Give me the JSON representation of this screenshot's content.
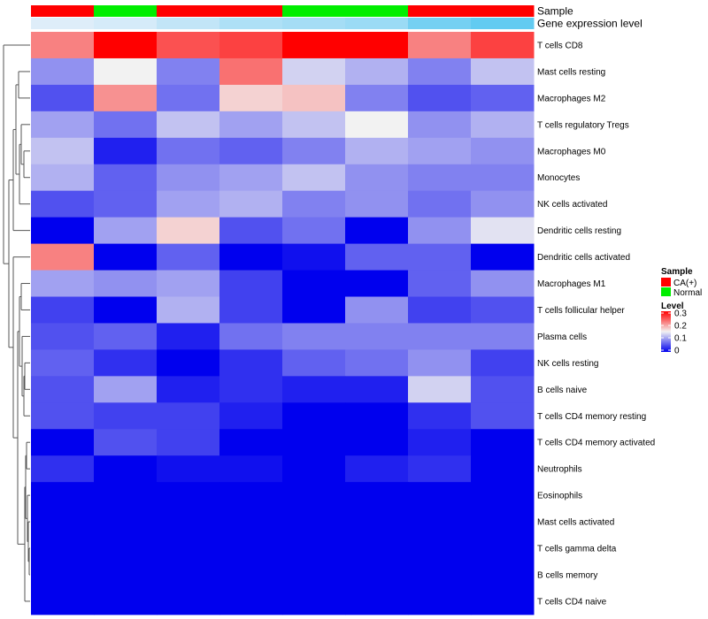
{
  "chart_data": {
    "type": "heatmap",
    "annotation_rows": [
      {
        "label": "Sample",
        "values": [
          "CA(+)",
          "Normal",
          "CA(+)",
          "CA(+)",
          "Normal",
          "Normal",
          "CA(+)",
          "CA(+)"
        ]
      },
      {
        "label": "Gene expression level",
        "values": [
          0.01,
          0.02,
          0.04,
          0.06,
          0.07,
          0.08,
          0.12,
          0.14
        ]
      }
    ],
    "rows": [
      "T cells CD8",
      "Mast cells resting",
      "Macrophages M2",
      "T cells regulatory  Tregs",
      "Macrophages M0",
      "Monocytes",
      "NK cells activated",
      "Dendritic cells resting",
      "Dendritic cells activated",
      "Macrophages M1",
      "T cells follicular helper",
      "Plasma cells",
      "NK cells resting",
      "B cells naive",
      "T cells CD4 memory resting",
      "T cells CD4 memory activated",
      "Neutrophils",
      "Eosinophils",
      "Mast cells activated",
      "T cells gamma delta",
      "B cells memory",
      "T cells CD4 naive"
    ],
    "values": [
      [
        0.22,
        0.3,
        0.25,
        0.26,
        0.3,
        0.3,
        0.22,
        0.26
      ],
      [
        0.09,
        0.15,
        0.08,
        0.23,
        0.13,
        0.11,
        0.08,
        0.12
      ],
      [
        0.05,
        0.21,
        0.07,
        0.17,
        0.18,
        0.08,
        0.05,
        0.06
      ],
      [
        0.1,
        0.07,
        0.12,
        0.1,
        0.12,
        0.15,
        0.09,
        0.11
      ],
      [
        0.12,
        0.02,
        0.07,
        0.06,
        0.08,
        0.11,
        0.1,
        0.09
      ],
      [
        0.11,
        0.06,
        0.09,
        0.1,
        0.12,
        0.09,
        0.08,
        0.08
      ],
      [
        0.05,
        0.06,
        0.1,
        0.11,
        0.08,
        0.09,
        0.07,
        0.09
      ],
      [
        0.0,
        0.1,
        0.17,
        0.05,
        0.07,
        0.0,
        0.09,
        0.14
      ],
      [
        0.22,
        0.0,
        0.06,
        0.0,
        0.01,
        0.06,
        0.06,
        0.0
      ],
      [
        0.1,
        0.09,
        0.1,
        0.04,
        0.0,
        0.0,
        0.06,
        0.09
      ],
      [
        0.04,
        0.0,
        0.11,
        0.04,
        0.0,
        0.09,
        0.04,
        0.05
      ],
      [
        0.05,
        0.06,
        0.02,
        0.07,
        0.08,
        0.08,
        0.08,
        0.08
      ],
      [
        0.06,
        0.03,
        0.0,
        0.03,
        0.06,
        0.07,
        0.09,
        0.04
      ],
      [
        0.05,
        0.1,
        0.02,
        0.03,
        0.02,
        0.02,
        0.13,
        0.05
      ],
      [
        0.05,
        0.04,
        0.04,
        0.02,
        0.0,
        0.0,
        0.03,
        0.05
      ],
      [
        0.0,
        0.05,
        0.04,
        0.0,
        0.0,
        0.0,
        0.02,
        0.0
      ],
      [
        0.03,
        0.0,
        0.01,
        0.01,
        0.0,
        0.02,
        0.03,
        0.0
      ],
      [
        0.0,
        0.0,
        0.0,
        0.0,
        0.0,
        0.0,
        0.0,
        0.0
      ],
      [
        0.0,
        0.0,
        0.0,
        0.0,
        0.0,
        0.0,
        0.0,
        0.0
      ],
      [
        0.0,
        0.0,
        0.0,
        0.0,
        0.0,
        0.0,
        0.0,
        0.0
      ],
      [
        0.0,
        0.0,
        0.0,
        0.0,
        0.0,
        0.0,
        0.0,
        0.0
      ],
      [
        0.0,
        0.0,
        0.0,
        0.0,
        0.0,
        0.0,
        0.0,
        0.0
      ]
    ],
    "color_scale": {
      "low": "#0000ee",
      "mid": "#f2f2f2",
      "high": "#ff0000",
      "min": 0,
      "mid_value": 0.15,
      "max": 0.3
    },
    "row_dendrogram": true,
    "legend": {
      "sample": {
        "title": "Sample",
        "items": [
          {
            "label": "CA(+)",
            "color": "#ff0000"
          },
          {
            "label": "Normal",
            "color": "#00ee00"
          }
        ]
      },
      "level": {
        "title": "Level",
        "ticks": [
          "0.3",
          "0.2",
          "0.1",
          "0"
        ]
      }
    }
  }
}
